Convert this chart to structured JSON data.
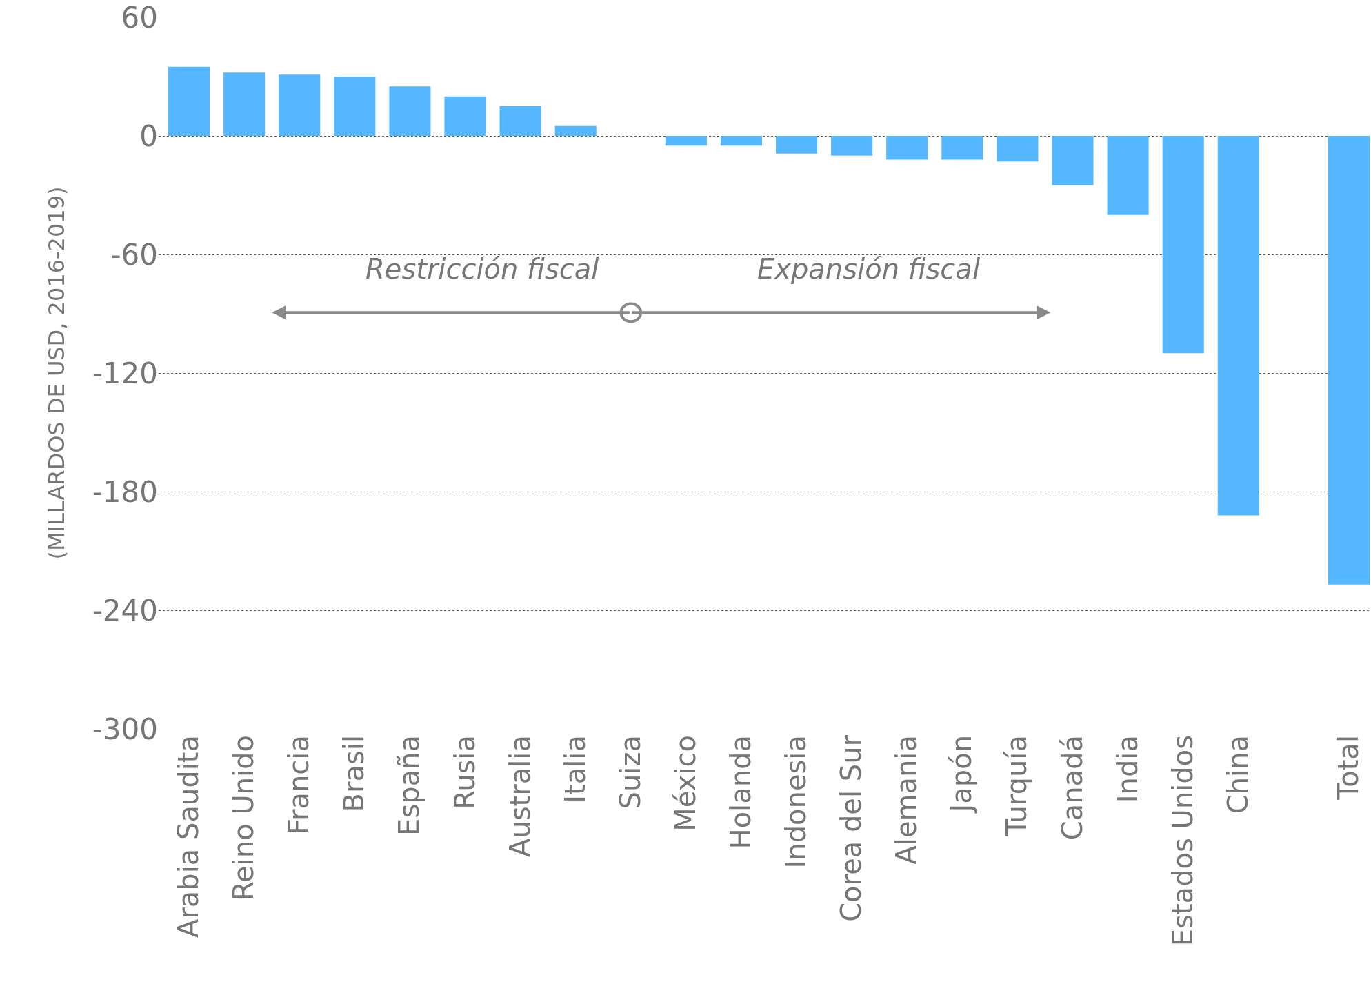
{
  "chart_data": {
    "type": "bar",
    "ylabel": "(MILLARDOS DE USD, 2016-2019)",
    "categories": [
      "Arabia Saudita",
      "Reino Unido",
      "Francia",
      "Brasil",
      "España",
      "Rusia",
      "Australia",
      "Italia",
      "Suiza",
      "México",
      "Holanda",
      "Indonesia",
      "Corea del Sur",
      "Alemania",
      "Japón",
      "Turquía",
      "Canadá",
      "India",
      "Estados Unidos",
      "China",
      null,
      "Total"
    ],
    "values": [
      35,
      32,
      31,
      30,
      25,
      20,
      15,
      5,
      0,
      -5,
      -5,
      -9,
      -10,
      -12,
      -12,
      -13,
      -25,
      -40,
      -110,
      -192,
      null,
      -227
    ],
    "color": "#55b7ff",
    "ylim": [
      -300,
      60
    ],
    "yticks": [
      -300,
      -240,
      -180,
      -120,
      -60,
      0,
      60
    ],
    "grid": "y",
    "annotations": [
      "Restricción fiscal",
      "Expansión fiscal"
    ]
  }
}
